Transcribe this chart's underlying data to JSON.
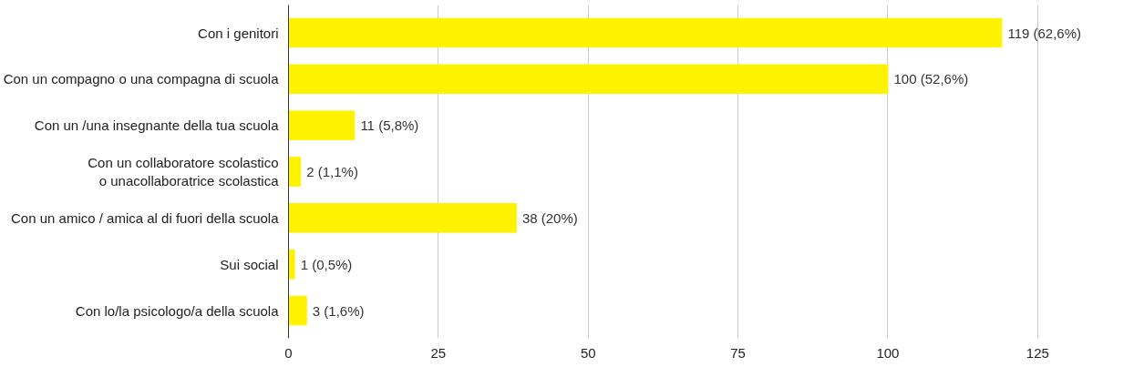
{
  "chart_data": {
    "type": "bar",
    "orientation": "horizontal",
    "categories": [
      "Con i genitori",
      "Con un compagno o una compagna di scuola",
      "Con un /una insegnante della tua scuola",
      "Con un collaboratore scolastico\no unacollaboratrice scolastica",
      "Con un amico / amica al di fuori della scuola",
      "Sui social",
      "Con lo/la psicologo/a della scuola"
    ],
    "values": [
      119,
      100,
      11,
      2,
      38,
      1,
      3
    ],
    "value_labels": [
      "119 (62,6%)",
      "100 (52,6%)",
      "11 (5,8%)",
      "2 (1,1%)",
      "38 (20%)",
      "1 (0,5%)",
      "3 (1,6%)"
    ],
    "color": "#fff200",
    "xlim": [
      0,
      125
    ],
    "xticks": [
      0,
      25,
      50,
      75,
      100,
      125
    ],
    "grid": "x"
  }
}
